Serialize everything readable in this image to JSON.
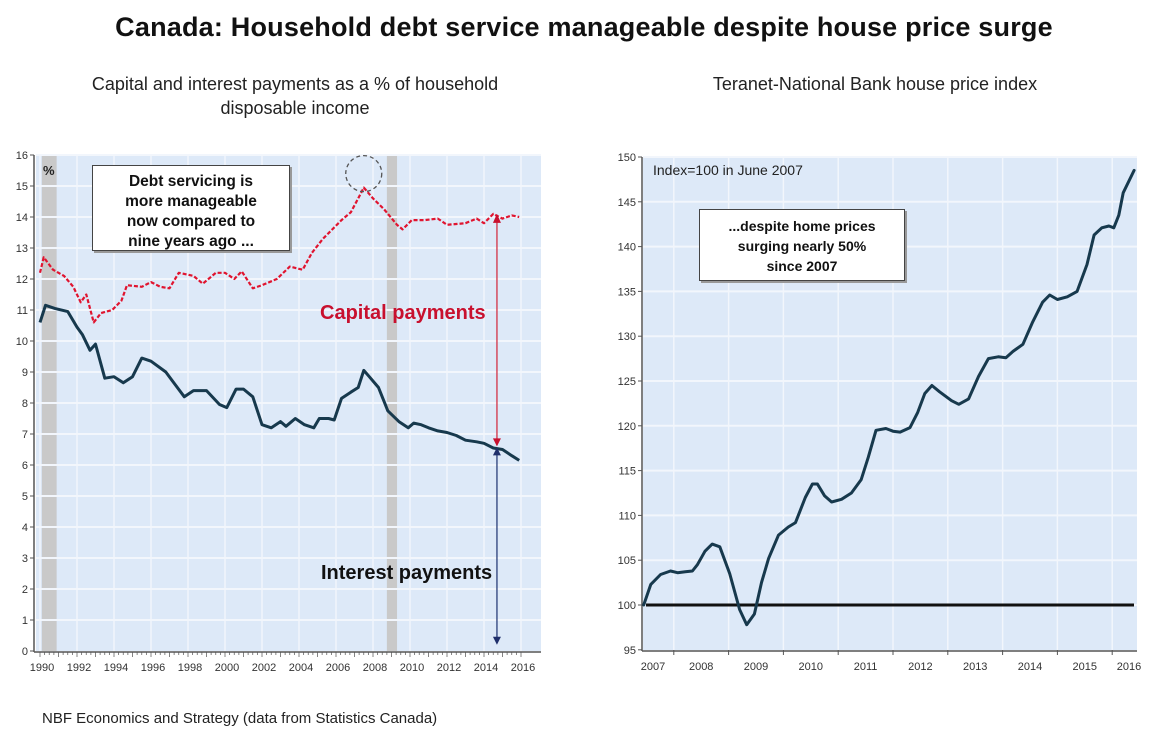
{
  "title": "Canada: Household debt service manageable despite house price surge",
  "footer": "NBF Economics and Strategy (data from Statistics Canada)",
  "chart_data": [
    {
      "type": "line",
      "title": "Capital and interest payments as a % of household disposable income",
      "title_lines": [
        "Capital and interest payments as a % of household",
        "disposable income"
      ],
      "ylabel": "%",
      "xlabel": "",
      "xlim": [
        1990,
        2016
      ],
      "ylim": [
        0,
        16
      ],
      "yticks": [
        0,
        1,
        2,
        3,
        4,
        5,
        6,
        7,
        8,
        9,
        10,
        11,
        12,
        13,
        14,
        15,
        16
      ],
      "xticks": [
        1990,
        1992,
        1994,
        1996,
        1998,
        2000,
        2002,
        2004,
        2006,
        2008,
        2010,
        2012,
        2014,
        2016
      ],
      "grid": true,
      "recession_bands": [
        [
          1990.1,
          1990.9
        ],
        [
          2008.75,
          2009.3
        ]
      ],
      "annotations": {
        "box": [
          "Debt servicing is",
          "more manageable",
          "now compared to",
          "nine years ago ..."
        ],
        "capital_label": "Capital payments",
        "interest_label": "Interest payments",
        "peak_circle_year": 2007.5,
        "arrow_year": 2014.7
      },
      "series": [
        {
          "name": "Capital and interest payments",
          "color": "#e0142f",
          "style": "dashed",
          "x": [
            1990.0,
            1990.2,
            1990.7,
            1991.3,
            1991.8,
            1992.2,
            1992.5,
            1992.9,
            1993.3,
            1993.9,
            1994.4,
            1994.7,
            1995.5,
            1996.0,
            1996.5,
            1997.0,
            1997.5,
            1998.3,
            1998.8,
            1999.5,
            2000.0,
            2000.5,
            2000.9,
            2001.5,
            2002.0,
            2002.8,
            2003.5,
            2004.2,
            2004.7,
            2005.3,
            2005.8,
            2006.3,
            2006.8,
            2007.2,
            2007.5,
            2008.0,
            2008.6,
            2009.3,
            2009.6,
            2010.1,
            2010.8,
            2011.5,
            2012.0,
            2013.0,
            2013.6,
            2014.0,
            2014.5,
            2015.0,
            2015.5,
            2015.9
          ],
          "y": [
            12.2,
            12.7,
            12.3,
            12.1,
            11.75,
            11.25,
            11.5,
            10.6,
            10.9,
            11.0,
            11.3,
            11.8,
            11.75,
            11.9,
            11.75,
            11.7,
            12.2,
            12.1,
            11.85,
            12.2,
            12.2,
            12.0,
            12.25,
            11.7,
            11.8,
            12.0,
            12.4,
            12.3,
            12.85,
            13.3,
            13.6,
            13.9,
            14.15,
            14.6,
            14.95,
            14.6,
            14.25,
            13.75,
            13.6,
            13.9,
            13.9,
            13.95,
            13.75,
            13.8,
            13.95,
            13.8,
            14.1,
            13.95,
            14.05,
            14.0
          ]
        },
        {
          "name": "Interest payments",
          "color": "#17394d",
          "style": "solid",
          "x": [
            1990.0,
            1990.3,
            1990.8,
            1991.5,
            1992.0,
            1992.3,
            1992.7,
            1993.0,
            1993.5,
            1994.0,
            1994.5,
            1995.0,
            1995.5,
            1996.0,
            1996.8,
            1997.3,
            1997.8,
            1998.3,
            1999.0,
            1999.7,
            2000.1,
            2000.6,
            2001.0,
            2001.5,
            2002.0,
            2002.5,
            2003.0,
            2003.3,
            2003.8,
            2004.3,
            2004.8,
            2005.1,
            2005.6,
            2005.9,
            2006.3,
            2006.8,
            2007.2,
            2007.5,
            2007.8,
            2008.3,
            2008.8,
            2009.4,
            2009.9,
            2010.2,
            2010.6,
            2011.0,
            2011.5,
            2012.0,
            2012.5,
            2013.0,
            2013.6,
            2014.0,
            2014.5,
            2015.0,
            2015.5,
            2015.9
          ],
          "y": [
            10.6,
            11.15,
            11.05,
            10.95,
            10.45,
            10.2,
            9.7,
            9.9,
            8.8,
            8.85,
            8.65,
            8.85,
            9.45,
            9.35,
            9.0,
            8.6,
            8.2,
            8.4,
            8.4,
            7.95,
            7.85,
            8.45,
            8.45,
            8.2,
            7.3,
            7.2,
            7.4,
            7.25,
            7.5,
            7.3,
            7.2,
            7.5,
            7.5,
            7.45,
            8.15,
            8.35,
            8.5,
            9.05,
            8.85,
            8.5,
            7.75,
            7.4,
            7.2,
            7.35,
            7.3,
            7.2,
            7.1,
            7.05,
            6.95,
            6.8,
            6.75,
            6.7,
            6.55,
            6.5,
            6.3,
            6.15
          ]
        }
      ]
    },
    {
      "type": "line",
      "title": "Teranet-National Bank house price index",
      "xlabel": "",
      "ylabel": "",
      "xlim": [
        2007,
        2016.55
      ],
      "ylim": [
        95,
        150
      ],
      "yticks": [
        95,
        100,
        105,
        110,
        115,
        120,
        125,
        130,
        135,
        140,
        145,
        150
      ],
      "xticks": [
        2007,
        2008,
        2009,
        2010,
        2011,
        2012,
        2013,
        2014,
        2015,
        2016
      ],
      "grid": true,
      "reference_line": 100,
      "annotations": {
        "note": "Index=100 in June 2007",
        "box": [
          "...despite home prices",
          "surging nearly 50%",
          "since 2007"
        ]
      },
      "series": [
        {
          "name": "Teranet-National Bank house price index",
          "color": "#17394d",
          "style": "solid",
          "x": [
            2007.45,
            2007.58,
            2007.76,
            2007.94,
            2008.07,
            2008.21,
            2008.34,
            2008.43,
            2008.57,
            2008.7,
            2008.84,
            2009.02,
            2009.2,
            2009.33,
            2009.47,
            2009.6,
            2009.73,
            2009.91,
            2010.09,
            2010.22,
            2010.4,
            2010.53,
            2010.62,
            2010.75,
            2010.88,
            2011.06,
            2011.24,
            2011.42,
            2011.55,
            2011.69,
            2011.87,
            2012.0,
            2012.13,
            2012.31,
            2012.45,
            2012.58,
            2012.71,
            2012.85,
            2013.07,
            2013.2,
            2013.38,
            2013.56,
            2013.74,
            2013.92,
            2014.06,
            2014.19,
            2014.37,
            2014.55,
            2014.73,
            2014.86,
            2015.0,
            2015.18,
            2015.36,
            2015.54,
            2015.67,
            2015.81,
            2015.94,
            2016.03,
            2016.12,
            2016.2,
            2016.4
          ],
          "y": [
            100,
            102.3,
            103.4,
            103.8,
            103.6,
            103.7,
            103.8,
            104.5,
            106.0,
            106.8,
            106.5,
            103.5,
            99.5,
            97.8,
            99.0,
            102.5,
            105.2,
            107.8,
            108.7,
            109.2,
            112.0,
            113.5,
            113.5,
            112.2,
            111.5,
            111.8,
            112.5,
            114.0,
            116.5,
            119.5,
            119.7,
            119.4,
            119.3,
            119.8,
            121.5,
            123.6,
            124.5,
            123.8,
            122.8,
            122.4,
            123.0,
            125.5,
            127.5,
            127.7,
            127.6,
            128.3,
            129.1,
            131.6,
            133.8,
            134.6,
            134.1,
            134.4,
            135.0,
            138.0,
            141.3,
            142.1,
            142.3,
            142.1,
            143.5,
            146.0,
            148.5
          ]
        }
      ]
    }
  ]
}
